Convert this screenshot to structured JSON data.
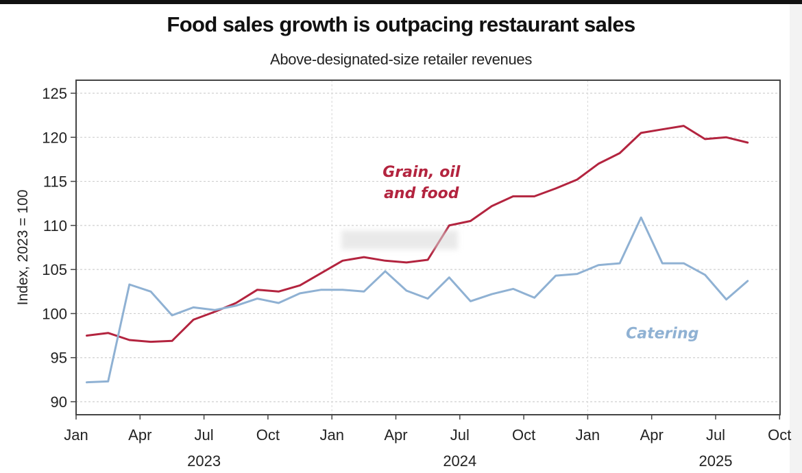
{
  "chart_data": {
    "type": "line",
    "title": "Food sales growth is outpacing restaurant sales",
    "subtitle": "Above-designated-size retailer revenues",
    "xlabel": "",
    "ylabel": "Index, 2023 = 100",
    "ylim": [
      88.5,
      126
    ],
    "yticks": [
      90,
      95,
      100,
      105,
      110,
      115,
      120,
      125
    ],
    "ytick_labels": [
      "90",
      "95",
      "100",
      "105",
      "110",
      "115",
      "120",
      "125"
    ],
    "x_range_months": [
      0,
      33
    ],
    "xticks": [
      {
        "month_index": 0,
        "label": "Jan"
      },
      {
        "month_index": 3,
        "label": "Apr"
      },
      {
        "month_index": 6,
        "label": "Jul"
      },
      {
        "month_index": 9,
        "label": "Oct"
      },
      {
        "month_index": 12,
        "label": "Jan"
      },
      {
        "month_index": 15,
        "label": "Apr"
      },
      {
        "month_index": 18,
        "label": "Jul"
      },
      {
        "month_index": 21,
        "label": "Oct"
      },
      {
        "month_index": 24,
        "label": "Jan"
      },
      {
        "month_index": 27,
        "label": "Apr"
      },
      {
        "month_index": 30,
        "label": "Jul"
      },
      {
        "month_index": 33,
        "label": "Oct"
      }
    ],
    "year_labels": [
      {
        "month_index": 6,
        "label": "2023"
      },
      {
        "month_index": 18,
        "label": "2024"
      },
      {
        "month_index": 30,
        "label": "2025"
      }
    ],
    "grid": {
      "horizontal": true,
      "vertical_at_years": true,
      "style": "dotted"
    },
    "x": [
      "2023-01",
      "2023-02",
      "2023-03",
      "2023-04",
      "2023-05",
      "2023-06",
      "2023-07",
      "2023-08",
      "2023-09",
      "2023-10",
      "2023-11",
      "2023-12",
      "2024-01",
      "2024-02",
      "2024-03",
      "2024-04",
      "2024-05",
      "2024-06",
      "2024-07",
      "2024-08",
      "2024-09",
      "2024-10",
      "2024-11",
      "2024-12",
      "2025-01",
      "2025-02",
      "2025-03",
      "2025-04",
      "2025-05",
      "2025-06",
      "2025-07",
      "2025-08"
    ],
    "series": [
      {
        "name": "Grain, oil and food",
        "label_lines": [
          "Grain, oil",
          "and food"
        ],
        "color": "#b3243f",
        "values": [
          97.5,
          97.8,
          97.0,
          96.8,
          96.9,
          99.3,
          100.2,
          101.2,
          102.7,
          102.5,
          103.2,
          104.6,
          106.0,
          106.4,
          106.0,
          105.8,
          106.1,
          110.0,
          110.5,
          112.2,
          113.3,
          113.3,
          114.2,
          115.2,
          117.0,
          118.2,
          120.5,
          120.9,
          121.3,
          119.8,
          120.0,
          119.4
        ]
      },
      {
        "name": "Catering",
        "label_lines": [
          "Catering"
        ],
        "color": "#8fb1d3",
        "values": [
          92.2,
          92.3,
          103.3,
          102.5,
          99.8,
          100.7,
          100.4,
          100.9,
          101.7,
          101.2,
          102.3,
          102.7,
          102.7,
          102.5,
          104.8,
          102.6,
          101.7,
          104.1,
          101.4,
          102.2,
          102.8,
          101.8,
          104.3,
          104.5,
          105.5,
          105.7,
          110.9,
          105.7,
          105.7,
          104.4,
          101.6,
          103.7
        ]
      }
    ],
    "annotations": [
      {
        "series": 0,
        "text_lines": [
          "Grain, oil",
          "and food"
        ],
        "anchor_month": 16.2,
        "anchor_value": 115.5
      },
      {
        "series": 1,
        "text_lines": [
          "Catering"
        ],
        "anchor_month": 27.5,
        "anchor_value": 97.2
      }
    ],
    "legend": "inline-annotations"
  }
}
